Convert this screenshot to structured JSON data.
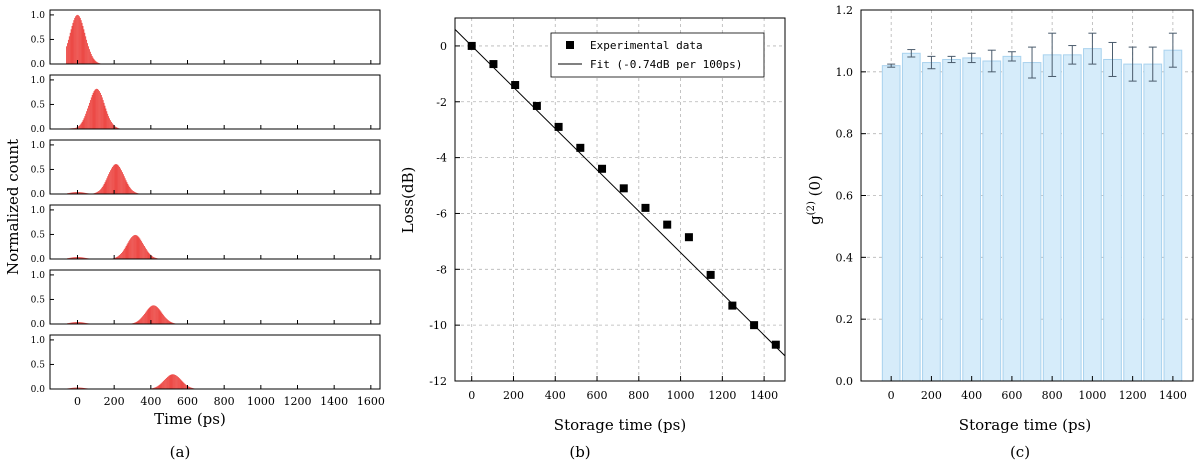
{
  "chart_data": [
    {
      "panel": "(a)",
      "type": "bar",
      "xlabel": "Time (ps)",
      "ylabel": "Normalized count",
      "xlim": [
        -150,
        1650
      ],
      "ylim": [
        0,
        1.1
      ],
      "x_ticks": [
        "0",
        "200",
        "400",
        "600",
        "800",
        "1000",
        "1200",
        "1400",
        "1600"
      ],
      "y_ticks": [
        "0.0",
        "0.5",
        "1.0"
      ],
      "color": "#e8231f",
      "histograms": [
        {
          "peak_center": 0,
          "peak_height": 1.0,
          "width_sigma": 42,
          "background": 0.0
        },
        {
          "peak_center": 105,
          "peak_height": 0.82,
          "width_sigma": 43,
          "background": 0.02
        },
        {
          "peak_center": 210,
          "peak_height": 0.61,
          "width_sigma": 44,
          "background": 0.04
        },
        {
          "peak_center": 315,
          "peak_height": 0.49,
          "width_sigma": 45,
          "background": 0.04
        },
        {
          "peak_center": 415,
          "peak_height": 0.38,
          "width_sigma": 45,
          "background": 0.04
        },
        {
          "peak_center": 520,
          "peak_height": 0.3,
          "width_sigma": 46,
          "background": 0.03
        }
      ]
    },
    {
      "panel": "(b)",
      "type": "scatter",
      "xlabel": "Storage time (ps)",
      "ylabel": "Loss(dB)",
      "xlim": [
        -80,
        1500
      ],
      "ylim": [
        -12,
        1
      ],
      "x_ticks": [
        "0",
        "200",
        "400",
        "600",
        "800",
        "1000",
        "1200",
        "1400"
      ],
      "y_ticks": [
        "0",
        "-2",
        "-4",
        "-6",
        "-8",
        "-10",
        "-12"
      ],
      "grid": true,
      "legend_position": "top-right",
      "legend": [
        "Experimental data",
        "Fit (-0.74dB per 100ps)"
      ],
      "series": [
        {
          "name": "Experimental data",
          "x": [
            0,
            104,
            208,
            312,
            416,
            520,
            624,
            728,
            832,
            936,
            1040,
            1144,
            1248,
            1352,
            1456
          ],
          "y": [
            0,
            -0.65,
            -1.4,
            -2.15,
            -2.9,
            -3.65,
            -4.4,
            -5.1,
            -5.8,
            -6.4,
            -6.85,
            -8.2,
            -9.3,
            -10.0,
            -10.7
          ]
        },
        {
          "name": "Fit (-0.74dB per 100ps)",
          "x": [
            -80,
            1500
          ],
          "y": [
            0.592,
            -11.1
          ]
        }
      ]
    },
    {
      "panel": "(c)",
      "type": "bar",
      "xlabel": "Storage time (ps)",
      "ylabel": "g(2)(0)",
      "xlim": [
        -150,
        1500
      ],
      "ylim": [
        0,
        1.2
      ],
      "x_ticks": [
        "0",
        "200",
        "400",
        "600",
        "800",
        "1000",
        "1200",
        "1400"
      ],
      "y_ticks": [
        "0.0",
        "0.2",
        "0.4",
        "0.6",
        "0.8",
        "1.0",
        "1.2"
      ],
      "grid": true,
      "x": [
        0,
        100,
        200,
        300,
        400,
        500,
        600,
        700,
        800,
        900,
        1000,
        1100,
        1200,
        1300,
        1400
      ],
      "values": [
        1.02,
        1.06,
        1.03,
        1.04,
        1.045,
        1.035,
        1.05,
        1.03,
        1.055,
        1.055,
        1.075,
        1.04,
        1.025,
        1.025,
        1.07
      ],
      "errors": [
        0.005,
        0.012,
        0.02,
        0.01,
        0.015,
        0.035,
        0.015,
        0.05,
        0.07,
        0.03,
        0.05,
        0.055,
        0.055,
        0.055,
        0.055
      ],
      "bar_color": "#d6ecfa",
      "bar_edge": "#a9d2ee"
    }
  ]
}
